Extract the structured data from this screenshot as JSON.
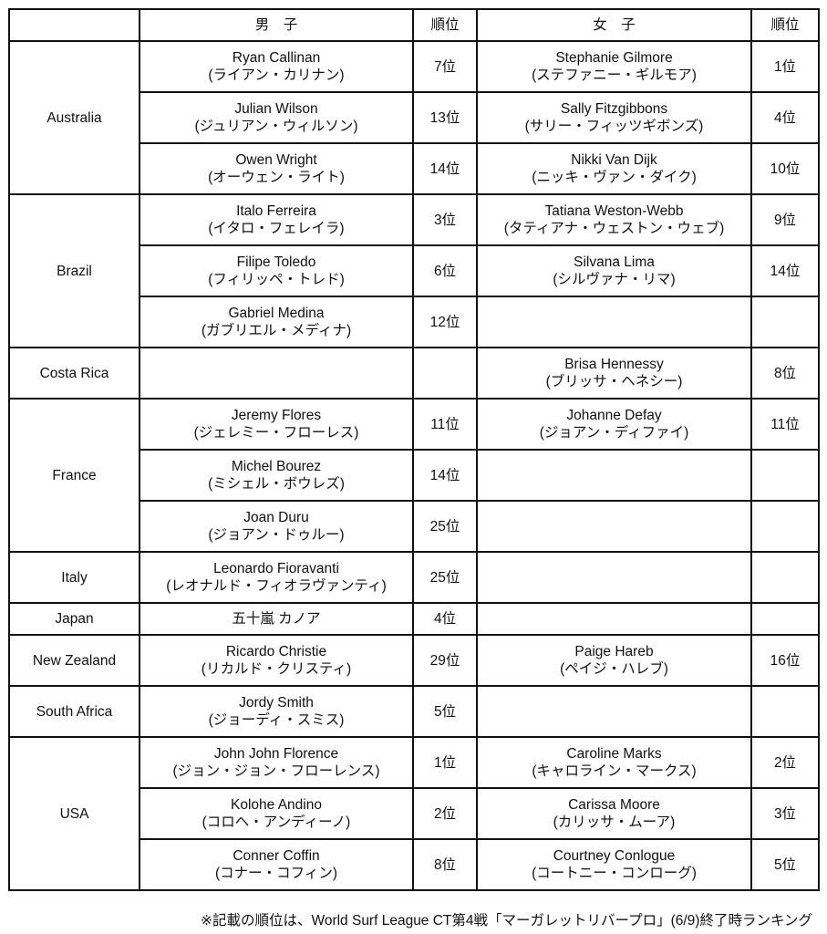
{
  "header": {
    "country": "",
    "male": "男　子",
    "male_rank": "順位",
    "female": "女　子",
    "female_rank": "順位"
  },
  "countries": [
    {
      "name": "Australia",
      "rows": [
        {
          "male_en": "Ryan Callinan",
          "male_ja": "(ライアン・カリナン)",
          "male_rank": "7位",
          "female_en": "Stephanie Gilmore",
          "female_ja": "(ステファニー・ギルモア)",
          "female_rank": "1位"
        },
        {
          "male_en": "Julian Wilson",
          "male_ja": "(ジュリアン・ウィルソン)",
          "male_rank": "13位",
          "female_en": "Sally Fitzgibbons",
          "female_ja": "(サリー・フィッツギボンズ)",
          "female_rank": "4位"
        },
        {
          "male_en": "Owen Wright",
          "male_ja": "(オーウェン・ライト)",
          "male_rank": "14位",
          "female_en": "Nikki Van Dijk",
          "female_ja": "(ニッキ・ヴァン・ダイク)",
          "female_rank": "10位"
        }
      ]
    },
    {
      "name": "Brazil",
      "rows": [
        {
          "male_en": "Italo Ferreira",
          "male_ja": "(イタロ・フェレイラ)",
          "male_rank": "3位",
          "female_en": "Tatiana Weston-Webb",
          "female_ja": "(タティアナ・ウェストン・ウェブ)",
          "female_rank": "9位"
        },
        {
          "male_en": "Filipe Toledo",
          "male_ja": "(フィリッペ・トレド)",
          "male_rank": "6位",
          "female_en": "Silvana Lima",
          "female_ja": "(シルヴァナ・リマ)",
          "female_rank": "14位"
        },
        {
          "male_en": "Gabriel Medina",
          "male_ja": "(ガブリエル・メディナ)",
          "male_rank": "12位",
          "female_en": "",
          "female_ja": "",
          "female_rank": ""
        }
      ]
    },
    {
      "name": "Costa Rica",
      "rows": [
        {
          "male_en": "",
          "male_ja": "",
          "male_rank": "",
          "female_en": "Brisa Hennessy",
          "female_ja": "(ブリッサ・ヘネシー)",
          "female_rank": "8位"
        }
      ]
    },
    {
      "name": "France",
      "rows": [
        {
          "male_en": "Jeremy Flores",
          "male_ja": "(ジェレミー・フローレス)",
          "male_rank": "11位",
          "female_en": "Johanne Defay",
          "female_ja": "(ジョアン・ディファイ)",
          "female_rank": "11位"
        },
        {
          "male_en": "Michel Bourez",
          "male_ja": "(ミシェル・ボウレズ)",
          "male_rank": "14位",
          "female_en": "",
          "female_ja": "",
          "female_rank": ""
        },
        {
          "male_en": "Joan Duru",
          "male_ja": "(ジョアン・ドゥルー)",
          "male_rank": "25位",
          "female_en": "",
          "female_ja": "",
          "female_rank": ""
        }
      ]
    },
    {
      "name": "Italy",
      "rows": [
        {
          "male_en": "Leonardo Fioravanti",
          "male_ja": "(レオナルド・フィオラヴァンティ)",
          "male_rank": "25位",
          "female_en": "",
          "female_ja": "",
          "female_rank": ""
        }
      ]
    },
    {
      "name": "Japan",
      "short": true,
      "rows": [
        {
          "male_en": "五十嵐 カノア",
          "male_ja": "",
          "male_rank": "4位",
          "female_en": "",
          "female_ja": "",
          "female_rank": ""
        }
      ]
    },
    {
      "name": "New Zealand",
      "rows": [
        {
          "male_en": "Ricardo Christie",
          "male_ja": "(リカルド・クリスティ)",
          "male_rank": "29位",
          "female_en": "Paige Hareb",
          "female_ja": "(ペイジ・ハレブ)",
          "female_rank": "16位"
        }
      ]
    },
    {
      "name": "South Africa",
      "rows": [
        {
          "male_en": "Jordy Smith",
          "male_ja": "(ジョーディ・スミス)",
          "male_rank": "5位",
          "female_en": "",
          "female_ja": "",
          "female_rank": ""
        }
      ]
    },
    {
      "name": "USA",
      "rows": [
        {
          "male_en": "John John Florence",
          "male_ja": "(ジョン・ジョン・フローレンス)",
          "male_rank": "1位",
          "female_en": "Caroline Marks",
          "female_ja": "(キャロライン・マークス)",
          "female_rank": "2位"
        },
        {
          "male_en": "Kolohe Andino",
          "male_ja": "(コロヘ・アンディーノ)",
          "male_rank": "2位",
          "female_en": "Carissa Moore",
          "female_ja": "(カリッサ・ムーア)",
          "female_rank": "3位"
        },
        {
          "male_en": "Conner Coffin",
          "male_ja": "(コナー・コフィン)",
          "male_rank": "8位",
          "female_en": "Courtney Conlogue",
          "female_ja": "(コートニー・コンローグ)",
          "female_rank": "5位"
        }
      ]
    }
  ],
  "footnote": "※記載の順位は、World Surf League CT第4戦「マーガレットリバープロ」(6/9)終了時ランキング"
}
